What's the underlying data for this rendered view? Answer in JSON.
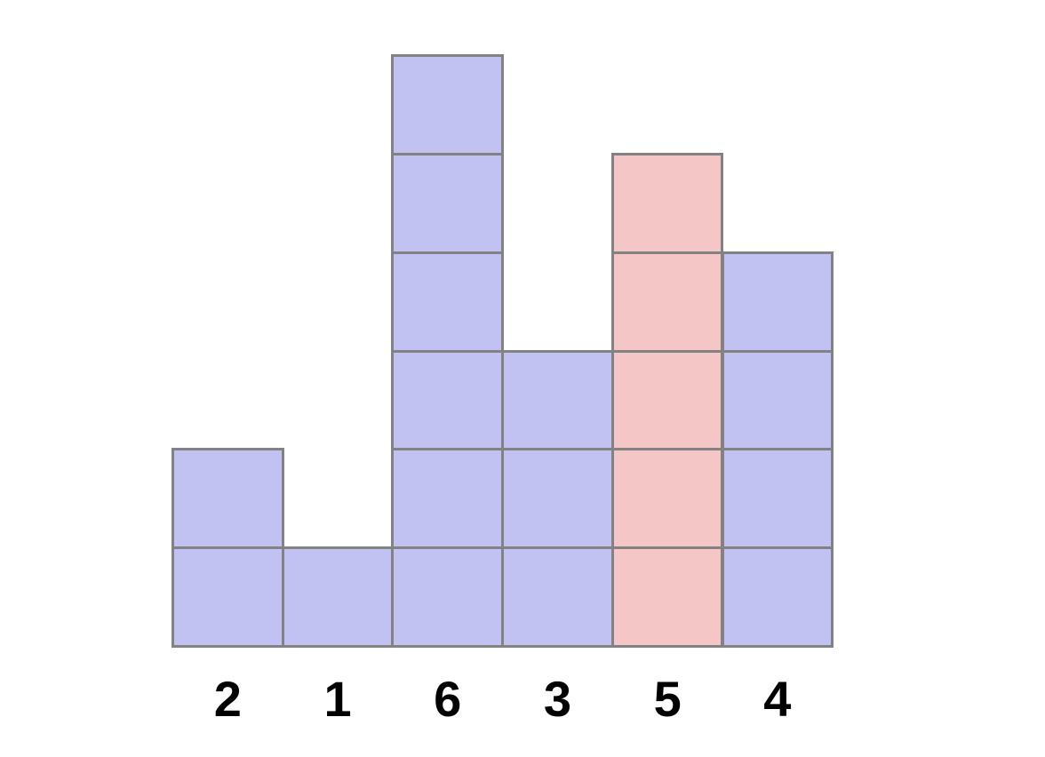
{
  "chart_data": {
    "type": "bar",
    "subtype": "unit-square-block-chart",
    "title": "",
    "xlabel": "",
    "ylabel": "",
    "categories": [
      "2",
      "1",
      "6",
      "3",
      "5",
      "4"
    ],
    "values": [
      2,
      1,
      6,
      3,
      5,
      4
    ],
    "highlighted_category": "5",
    "highlighted_index": 4,
    "ylim": [
      0,
      6
    ],
    "grid": false,
    "legend": false,
    "axes_shown": false,
    "colors": {
      "block_fill": "#c2c2f2",
      "highlight_fill": "#f5c6c6",
      "block_border": "#828282",
      "label_color": "#000000",
      "background": "#ffffff"
    }
  }
}
